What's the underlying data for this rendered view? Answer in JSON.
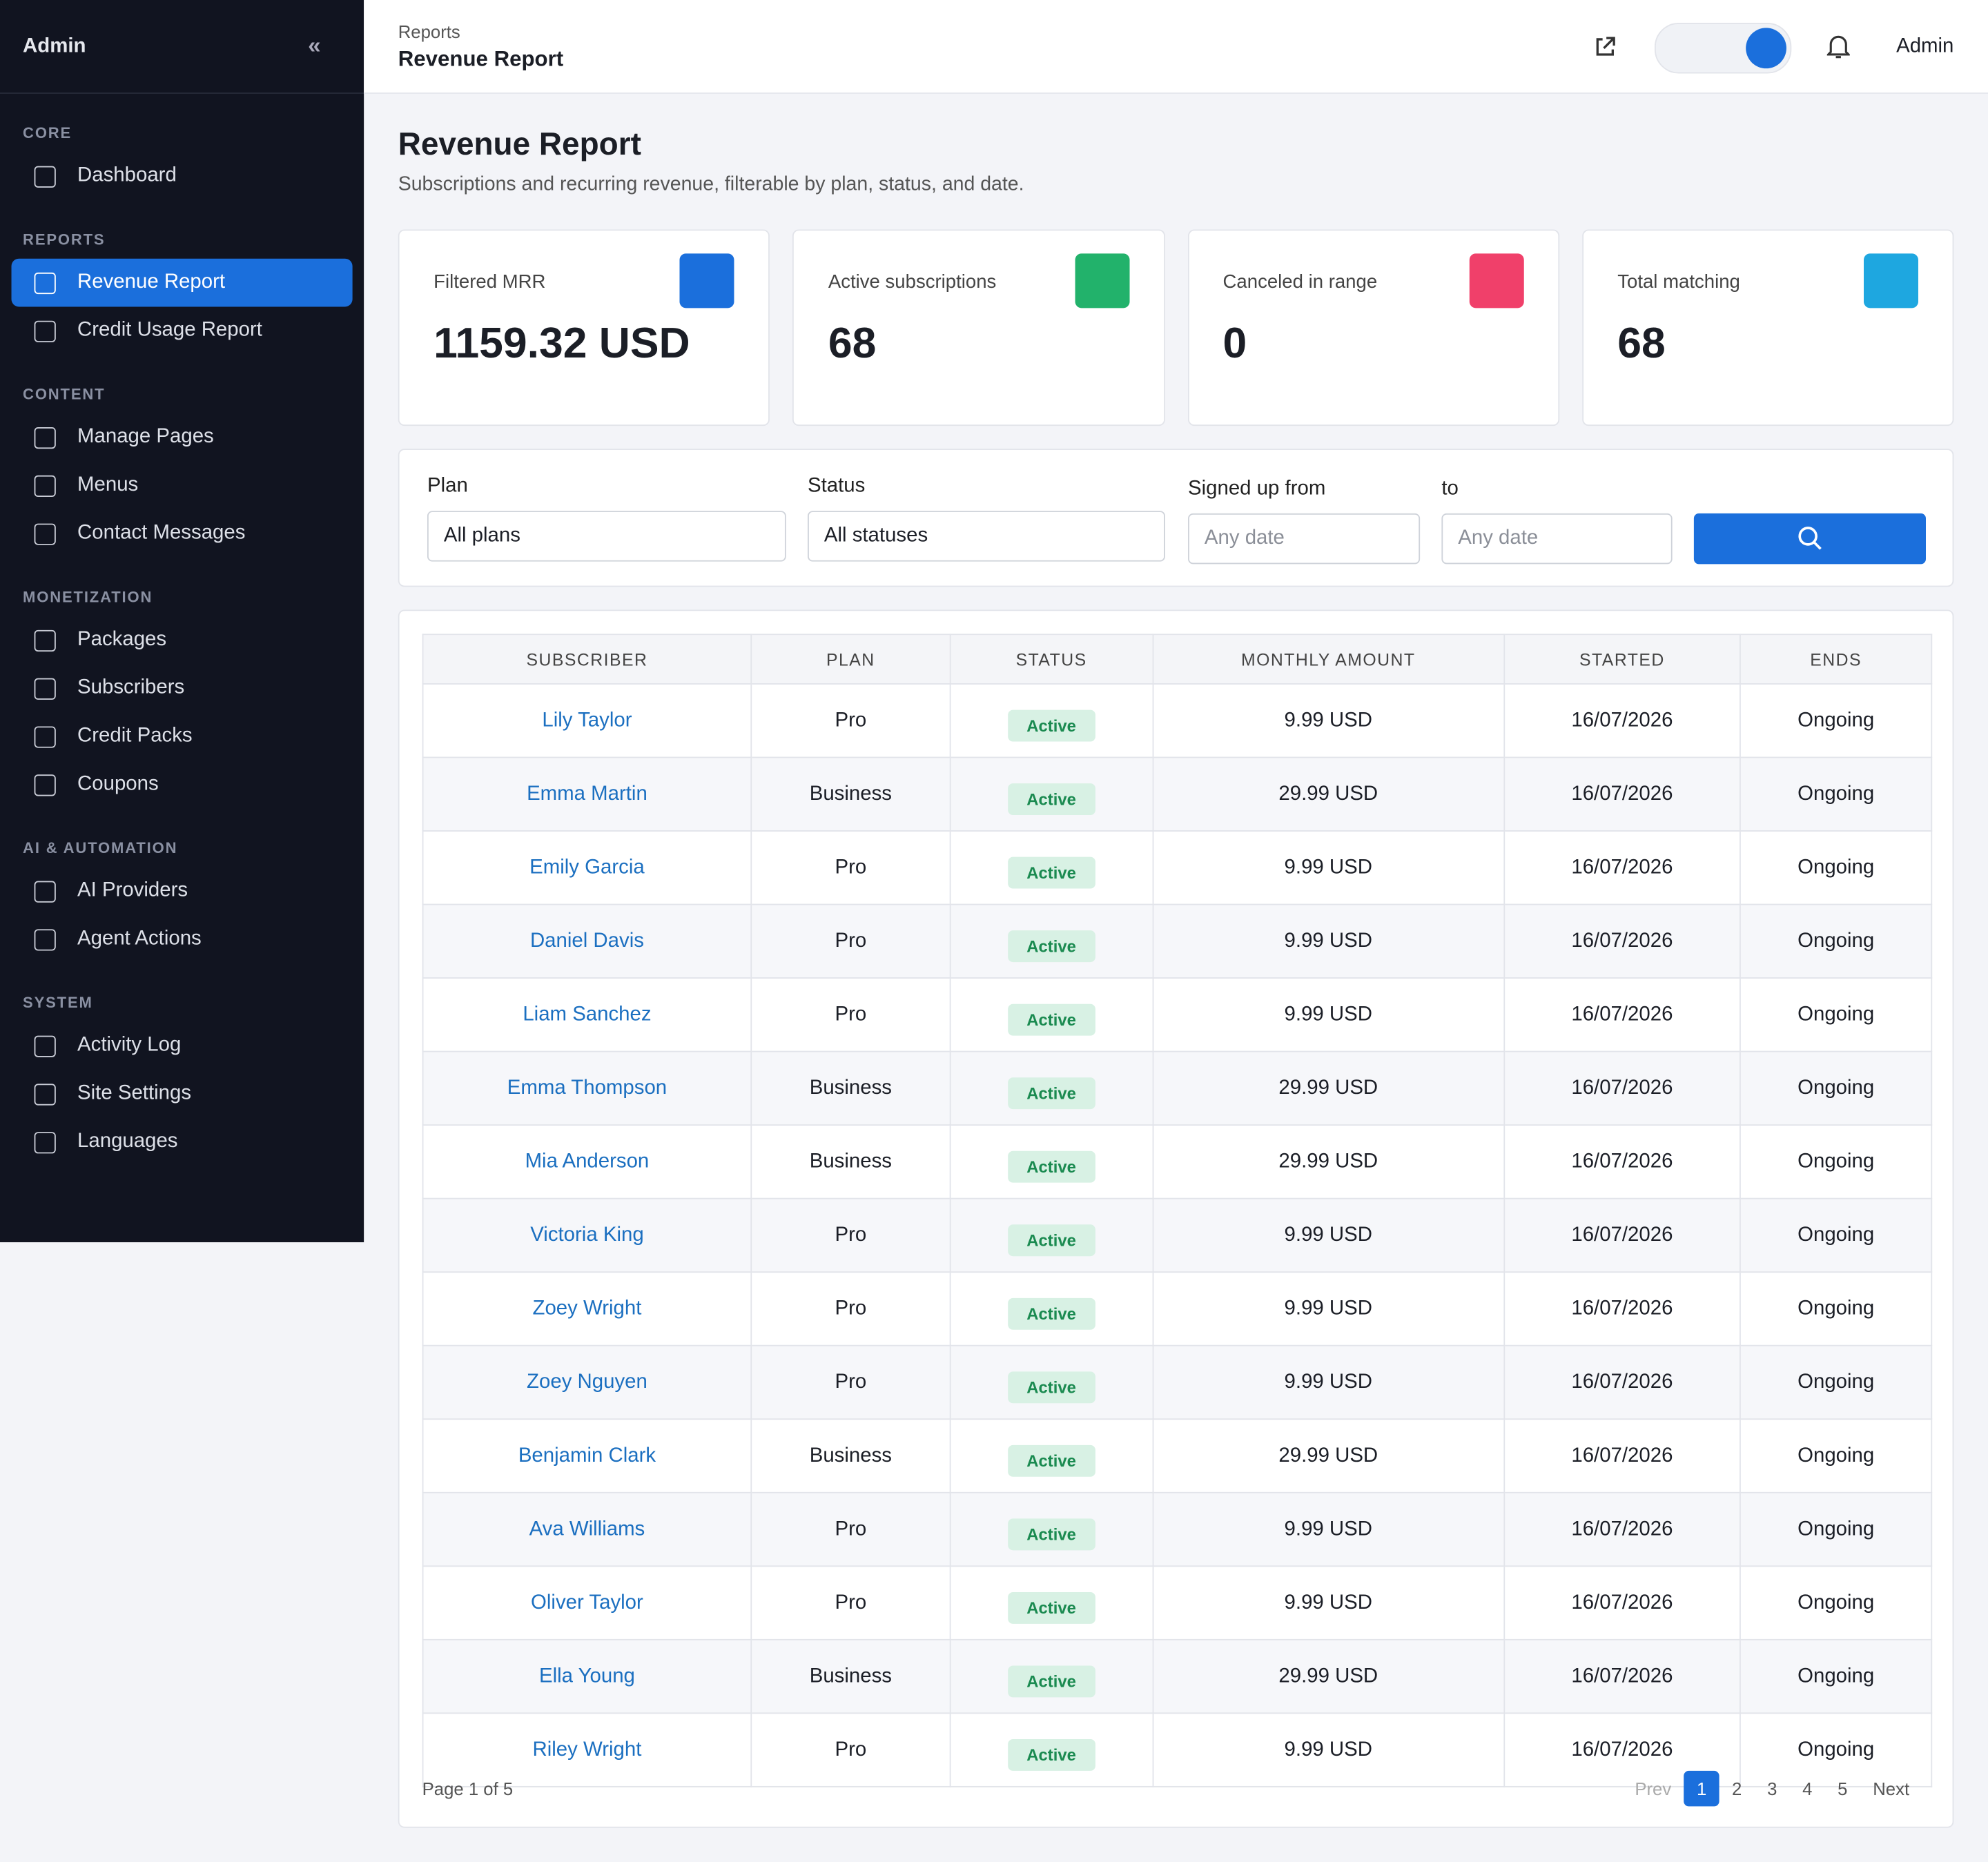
{
  "sidebar": {
    "brand": "Admin",
    "sections": [
      {
        "title": "CORE",
        "items": [
          "Dashboard"
        ]
      },
      {
        "title": "REPORTS",
        "items": [
          "Revenue Report",
          "Credit Usage Report"
        ]
      },
      {
        "title": "CONTENT",
        "items": [
          "Manage Pages",
          "Menus",
          "Contact Messages"
        ]
      },
      {
        "title": "MONETIZATION",
        "items": [
          "Packages",
          "Subscribers",
          "Credit Packs",
          "Coupons"
        ]
      },
      {
        "title": "AI & AUTOMATION",
        "items": [
          "AI Providers",
          "Agent Actions"
        ]
      },
      {
        "title": "SYSTEM",
        "items": [
          "Activity Log",
          "Site Settings",
          "Languages"
        ]
      }
    ]
  },
  "topbar": {
    "breadcrumb": "Reports",
    "title": "Revenue Report",
    "user": "Admin"
  },
  "page": {
    "title": "Revenue Report",
    "subtitle": "Subscriptions and recurring revenue, filterable by plan, status, and date."
  },
  "stats": [
    {
      "label": "Filtered MRR",
      "value": "1159.32 USD"
    },
    {
      "label": "Active subscriptions",
      "value": 68
    },
    {
      "label": "Canceled in range",
      "value": 0
    },
    {
      "label": "Total matching",
      "value": 68
    }
  ],
  "filters": {
    "plan": {
      "label": "Plan",
      "value": "All plans"
    },
    "status": {
      "label": "Status",
      "value": "All statuses"
    },
    "from": {
      "label": "Signed up from",
      "placeholder": "Any date"
    },
    "to": {
      "label": "to",
      "placeholder": "Any date"
    }
  },
  "table": {
    "headers": [
      "SUBSCRIBER",
      "PLAN",
      "STATUS",
      "MONTHLY AMOUNT",
      "STARTED",
      "ENDS"
    ],
    "rows": [
      [
        "Lily Taylor",
        "Pro",
        "Active",
        "9.99 USD",
        "16/07/2026",
        "Ongoing"
      ],
      [
        "Emma Martin",
        "Business",
        "Active",
        "29.99 USD",
        "16/07/2026",
        "Ongoing"
      ],
      [
        "Emily Garcia",
        "Pro",
        "Active",
        "9.99 USD",
        "16/07/2026",
        "Ongoing"
      ],
      [
        "Daniel Davis",
        "Pro",
        "Active",
        "9.99 USD",
        "16/07/2026",
        "Ongoing"
      ],
      [
        "Liam Sanchez",
        "Pro",
        "Active",
        "9.99 USD",
        "16/07/2026",
        "Ongoing"
      ],
      [
        "Emma Thompson",
        "Business",
        "Active",
        "29.99 USD",
        "16/07/2026",
        "Ongoing"
      ],
      [
        "Mia Anderson",
        "Business",
        "Active",
        "29.99 USD",
        "16/07/2026",
        "Ongoing"
      ],
      [
        "Victoria King",
        "Pro",
        "Active",
        "9.99 USD",
        "16/07/2026",
        "Ongoing"
      ],
      [
        "Zoey Wright",
        "Pro",
        "Active",
        "9.99 USD",
        "16/07/2026",
        "Ongoing"
      ],
      [
        "Zoey Nguyen",
        "Pro",
        "Active",
        "9.99 USD",
        "16/07/2026",
        "Ongoing"
      ],
      [
        "Benjamin Clark",
        "Business",
        "Active",
        "29.99 USD",
        "16/07/2026",
        "Ongoing"
      ],
      [
        "Ava Williams",
        "Pro",
        "Active",
        "9.99 USD",
        "16/07/2026",
        "Ongoing"
      ],
      [
        "Oliver Taylor",
        "Pro",
        "Active",
        "9.99 USD",
        "16/07/2026",
        "Ongoing"
      ],
      [
        "Ella Young",
        "Business",
        "Active",
        "29.99 USD",
        "16/07/2026",
        "Ongoing"
      ],
      [
        "Riley Wright",
        "Pro",
        "Active",
        "9.99 USD",
        "16/07/2026",
        "Ongoing"
      ]
    ]
  },
  "pagination": {
    "summary": "Page 1 of 5",
    "prev": "Prev",
    "pages": [
      1,
      2,
      3,
      4,
      5
    ],
    "next": "Next"
  }
}
